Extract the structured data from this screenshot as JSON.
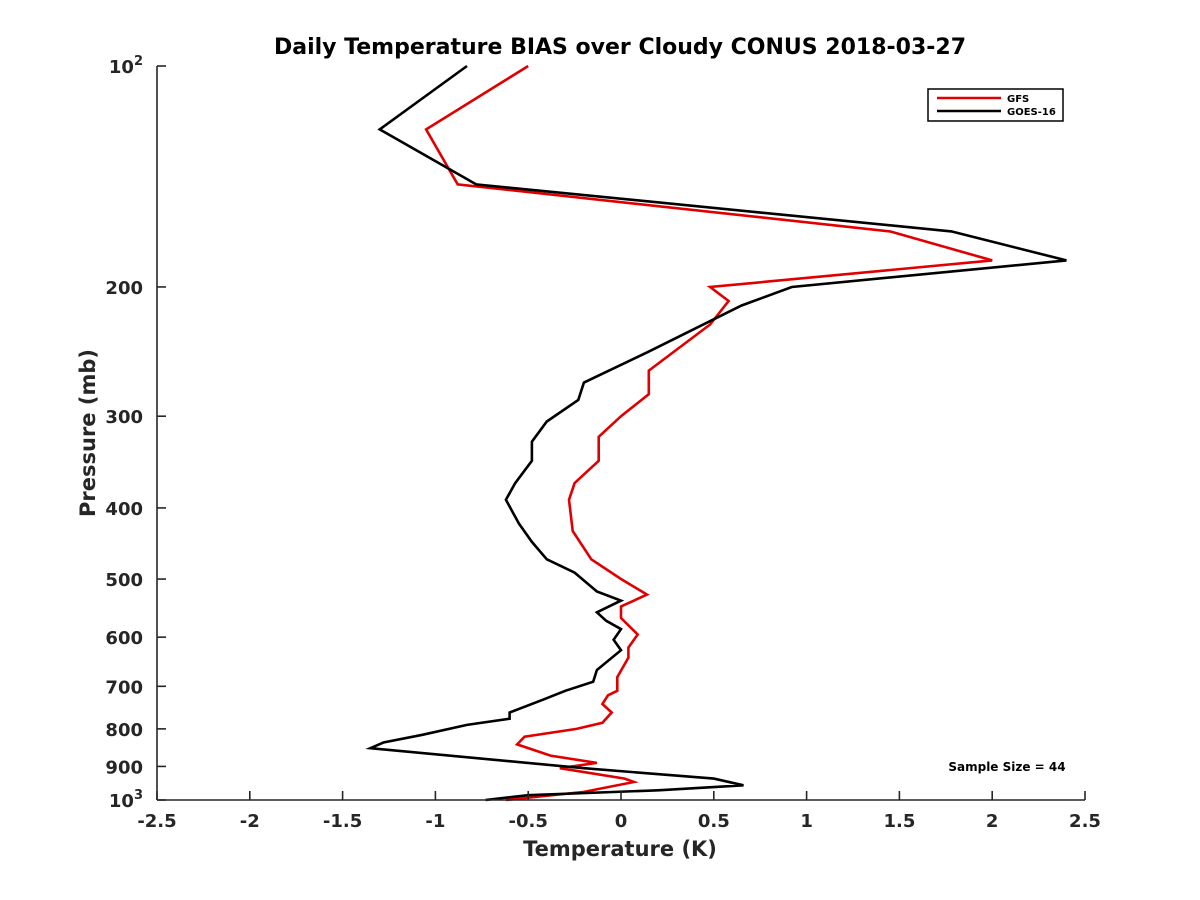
{
  "chart_data": {
    "type": "line",
    "title": "Daily Temperature BIAS over Cloudy CONUS 2018-03-27",
    "xlabel": "Temperature (K)",
    "ylabel": "Pressure (mb)",
    "xlim": [
      -2.5,
      2.5
    ],
    "ylim": [
      1000,
      100
    ],
    "y_scale": "log",
    "y_reversed": true,
    "grid": false,
    "legend_placement": "top-right",
    "x_ticks": [
      {
        "value": -2.5,
        "label": "-2.5"
      },
      {
        "value": -2,
        "label": "-2"
      },
      {
        "value": -1.5,
        "label": "-1.5"
      },
      {
        "value": -1,
        "label": "-1"
      },
      {
        "value": -0.5,
        "label": "-0.5"
      },
      {
        "value": 0,
        "label": "0"
      },
      {
        "value": 0.5,
        "label": "0.5"
      },
      {
        "value": 1,
        "label": "1"
      },
      {
        "value": 1.5,
        "label": "1.5"
      },
      {
        "value": 2,
        "label": "2"
      },
      {
        "value": 2.5,
        "label": "2.5"
      }
    ],
    "y_ticks": [
      {
        "value": 100,
        "label": "10",
        "sup": "2"
      },
      {
        "value": 200,
        "label": "200"
      },
      {
        "value": 300,
        "label": "300"
      },
      {
        "value": 400,
        "label": "400"
      },
      {
        "value": 500,
        "label": "500"
      },
      {
        "value": 600,
        "label": "600"
      },
      {
        "value": 700,
        "label": "700"
      },
      {
        "value": 800,
        "label": "800"
      },
      {
        "value": 900,
        "label": "900"
      },
      {
        "value": 1000,
        "label": "10",
        "sup": "3"
      }
    ],
    "annotation": "Sample Size = 44",
    "series": [
      {
        "name": "GFS",
        "color": "#e00000",
        "points": [
          [
            -0.5,
            100
          ],
          [
            -1.05,
            122
          ],
          [
            -0.88,
            145
          ],
          [
            1.45,
            168
          ],
          [
            2.0,
            184
          ],
          [
            0.48,
            200
          ],
          [
            0.58,
            209
          ],
          [
            0.48,
            225
          ],
          [
            0.15,
            260
          ],
          [
            0.15,
            280
          ],
          [
            0.0,
            300
          ],
          [
            -0.12,
            320
          ],
          [
            -0.12,
            345
          ],
          [
            -0.25,
            370
          ],
          [
            -0.28,
            390
          ],
          [
            -0.26,
            430
          ],
          [
            -0.16,
            470
          ],
          [
            0.0,
            500
          ],
          [
            0.14,
            525
          ],
          [
            0.0,
            545
          ],
          [
            0.0,
            565
          ],
          [
            0.09,
            595
          ],
          [
            0.04,
            620
          ],
          [
            0.04,
            640
          ],
          [
            -0.02,
            680
          ],
          [
            -0.02,
            710
          ],
          [
            -0.07,
            720
          ],
          [
            -0.1,
            740
          ],
          [
            -0.05,
            760
          ],
          [
            -0.1,
            785
          ],
          [
            -0.24,
            800
          ],
          [
            -0.52,
            820
          ],
          [
            -0.56,
            840
          ],
          [
            -0.38,
            870
          ],
          [
            -0.13,
            890
          ],
          [
            -0.33,
            905
          ],
          [
            0.02,
            935
          ],
          [
            0.07,
            945
          ],
          [
            -0.2,
            975
          ],
          [
            -0.62,
            1000
          ]
        ]
      },
      {
        "name": "GOES-16",
        "color": "#000000",
        "points": [
          [
            -0.83,
            100
          ],
          [
            -1.3,
            122
          ],
          [
            -0.78,
            145
          ],
          [
            1.78,
            168
          ],
          [
            2.4,
            184
          ],
          [
            0.92,
            200
          ],
          [
            0.65,
            212
          ],
          [
            0.15,
            245
          ],
          [
            -0.2,
            270
          ],
          [
            -0.23,
            285
          ],
          [
            -0.4,
            305
          ],
          [
            -0.48,
            325
          ],
          [
            -0.48,
            345
          ],
          [
            -0.57,
            370
          ],
          [
            -0.62,
            390
          ],
          [
            -0.55,
            420
          ],
          [
            -0.48,
            445
          ],
          [
            -0.4,
            470
          ],
          [
            -0.25,
            490
          ],
          [
            -0.13,
            520
          ],
          [
            0.0,
            535
          ],
          [
            -0.13,
            555
          ],
          [
            -0.08,
            570
          ],
          [
            0.0,
            585
          ],
          [
            -0.04,
            605
          ],
          [
            0.0,
            625
          ],
          [
            -0.13,
            665
          ],
          [
            -0.15,
            690
          ],
          [
            -0.3,
            710
          ],
          [
            -0.42,
            730
          ],
          [
            -0.6,
            760
          ],
          [
            -0.6,
            775
          ],
          [
            -0.83,
            790
          ],
          [
            -1.07,
            815
          ],
          [
            -1.28,
            835
          ],
          [
            -1.35,
            850
          ],
          [
            -0.2,
            905
          ],
          [
            0.5,
            935
          ],
          [
            0.66,
            955
          ],
          [
            0.2,
            970
          ],
          [
            -0.5,
            985
          ],
          [
            -0.73,
            1000
          ]
        ]
      }
    ]
  }
}
